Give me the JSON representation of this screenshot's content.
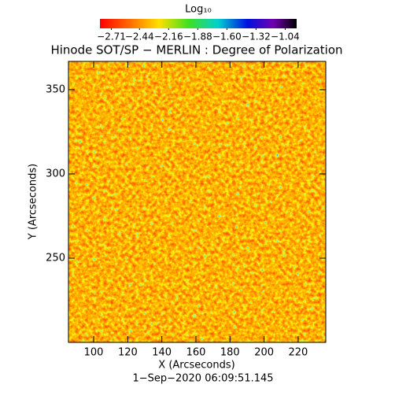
{
  "chart_data": {
    "type": "image",
    "title": "Hinode SOT/SP − MERLIN : Degree of Polarization",
    "colorbar_label": "Log₁₀",
    "clim": [
      -2.82,
      -0.93
    ],
    "cticks": [
      {
        "value": -2.71,
        "label": "−2.71"
      },
      {
        "value": -2.44,
        "label": "−2.44"
      },
      {
        "value": -2.16,
        "label": "−2.16"
      },
      {
        "value": -1.88,
        "label": "−1.88"
      },
      {
        "value": -1.6,
        "label": "−1.60"
      },
      {
        "value": -1.32,
        "label": "−1.32"
      },
      {
        "value": -1.04,
        "label": "−1.04"
      }
    ],
    "xlabel": "X (Arcseconds)",
    "ylabel": "Y (Arcseconds)",
    "xlim": [
      85.2,
      236.2
    ],
    "xticks": [
      100,
      120,
      140,
      160,
      180,
      200,
      220
    ],
    "ylim": [
      200,
      366.8
    ],
    "yticks": [
      250,
      300,
      350
    ],
    "date": "1−Sep−2020 06:09:51.145"
  }
}
